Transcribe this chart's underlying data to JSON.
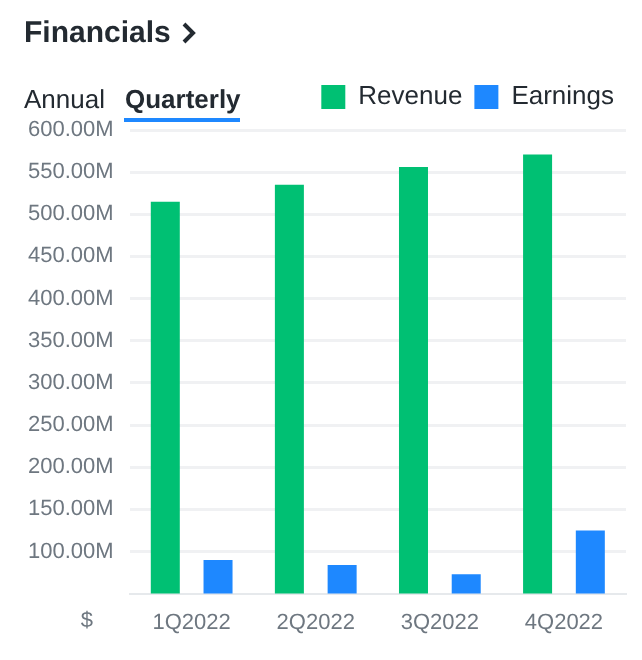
{
  "chart_data": {
    "type": "bar",
    "title": "Financials",
    "ylabel": "$",
    "annotations": [
      "Annual",
      "Quarterly"
    ],
    "categories": [
      "1Q2022",
      "2Q2022",
      "3Q2022",
      "4Q2022"
    ],
    "series": [
      {
        "name": "Revenue",
        "color": "#00c073",
        "values": [
          515,
          535,
          556,
          571
        ]
      },
      {
        "name": "Earnings",
        "color": "#1e88ff",
        "values": [
          90,
          84,
          73,
          125
        ]
      }
    ],
    "ylim": [
      50,
      600
    ],
    "yticks": [
      {
        "value": 100,
        "label": "100.00M"
      },
      {
        "value": 150,
        "label": "150.00M"
      },
      {
        "value": 200,
        "label": "200.00M"
      },
      {
        "value": 250,
        "label": "250.00M"
      },
      {
        "value": 300,
        "label": "300.00M"
      },
      {
        "value": 350,
        "label": "350.00M"
      },
      {
        "value": 400,
        "label": "400.00M"
      },
      {
        "value": 450,
        "label": "450.00M"
      },
      {
        "value": 500,
        "label": "500.00M"
      },
      {
        "value": 550,
        "label": "550.00M"
      },
      {
        "value": 600,
        "label": "600.00M"
      }
    ],
    "grid": "y",
    "legend": "top right"
  }
}
